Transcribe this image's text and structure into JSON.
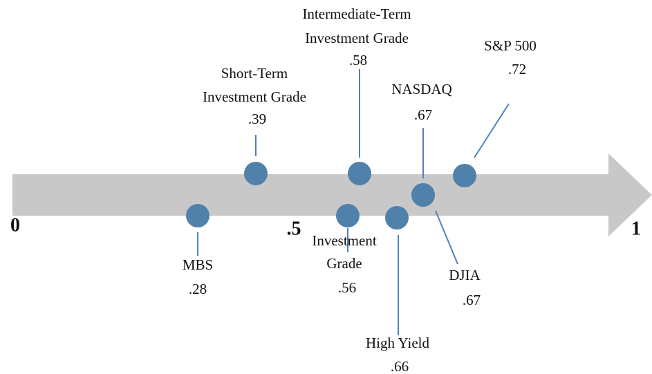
{
  "axis": {
    "labels": [
      "0",
      ".5",
      "1"
    ]
  },
  "nodes": [
    {
      "lines": [
        "MBS"
      ],
      "value": ".28"
    },
    {
      "lines": [
        "Short-Term",
        "Investment Grade"
      ],
      "value": ".39"
    },
    {
      "lines": [
        "Intermediate-Term",
        "Investment Grade"
      ],
      "value": ".58"
    },
    {
      "lines": [
        "Investment",
        "Grade"
      ],
      "value": ".56"
    },
    {
      "lines": [
        "High Yield"
      ],
      "value": ".66"
    },
    {
      "lines": [
        "NASDAQ"
      ],
      "value": ".67"
    },
    {
      "lines": [
        "DJIA"
      ],
      "value": ".67"
    },
    {
      "lines": [
        "S&P 500"
      ],
      "value": ".72"
    }
  ]
}
